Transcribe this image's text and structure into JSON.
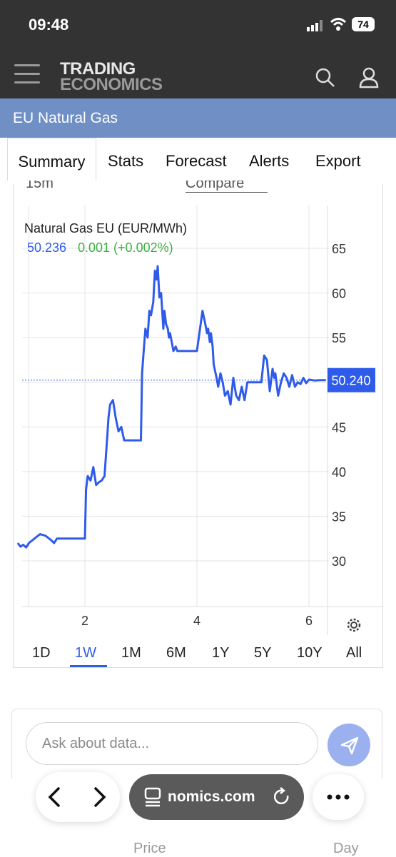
{
  "status_bar": {
    "time": "09:48",
    "battery": "74"
  },
  "header": {
    "logo_line1": "TRADING",
    "logo_line2": "ECONOMICS"
  },
  "page_title": "EU Natural Gas",
  "tabs": [
    "Summary",
    "Stats",
    "Forecast",
    "Alerts",
    "Export"
  ],
  "toolbar_partial": {
    "interval": "15m",
    "compare_placeholder": "Compare"
  },
  "chart_data": {
    "type": "line",
    "title": "Natural Gas EU (EUR/MWh)",
    "last_value": "50.236",
    "change": "0.001 (+0.002%)",
    "current_label": "50.240",
    "x_ticks": [
      "2",
      "4",
      "6"
    ],
    "y_ticks": [
      65,
      60,
      55,
      50,
      45,
      40,
      35,
      30
    ],
    "ylim": [
      25,
      66
    ],
    "xlim": [
      0.8,
      6.3
    ],
    "line_color": "#2f5bea",
    "change_color": "#3cb043",
    "grid": true,
    "series": [
      {
        "x": [
          0.8,
          0.85,
          0.9,
          0.95,
          1.0,
          1.1,
          1.2,
          1.3,
          1.4,
          1.45,
          1.5,
          1.6,
          1.8,
          2.0,
          2.02,
          2.05,
          2.1,
          2.15,
          2.2,
          2.25,
          2.3,
          2.35,
          2.4,
          2.42,
          2.45,
          2.5,
          2.55,
          2.6,
          2.65,
          2.7,
          2.75,
          2.8,
          2.85,
          2.9,
          3.0,
          3.02,
          3.05,
          3.08,
          3.1,
          3.12,
          3.15,
          3.18,
          3.22,
          3.25,
          3.28,
          3.3,
          3.33,
          3.36,
          3.4,
          3.42,
          3.45,
          3.48,
          3.5,
          3.52,
          3.55,
          3.58,
          3.62,
          3.65,
          3.7,
          3.8,
          3.9,
          4.0,
          4.1,
          4.15,
          4.18,
          4.2,
          4.23,
          4.25,
          4.28,
          4.3,
          4.35,
          4.38,
          4.42,
          4.46,
          4.5,
          4.55,
          4.6,
          4.65,
          4.7,
          4.75,
          4.8,
          4.85,
          4.9,
          5.0,
          5.1,
          5.15,
          5.2,
          5.25,
          5.3,
          5.35,
          5.38,
          5.4,
          5.45,
          5.5,
          5.55,
          5.6,
          5.65,
          5.7,
          5.75,
          5.8,
          5.85,
          5.9,
          5.95,
          6.0,
          6.1,
          6.2,
          6.3
        ],
        "y": [
          32.0,
          31.6,
          31.8,
          31.5,
          32.0,
          32.5,
          33.0,
          32.8,
          32.3,
          32.0,
          32.5,
          32.5,
          32.5,
          32.5,
          38.0,
          39.5,
          39.0,
          40.5,
          38.5,
          38.8,
          39.0,
          39.5,
          44.0,
          46.0,
          47.5,
          48.0,
          46.0,
          44.5,
          45.0,
          43.5,
          43.5,
          43.5,
          43.5,
          43.5,
          43.5,
          51.0,
          53.5,
          56.0,
          55.5,
          55.0,
          58.0,
          57.5,
          59.0,
          62.5,
          61.5,
          63.0,
          59.5,
          60.0,
          56.0,
          58.0,
          56.5,
          56.0,
          55.0,
          55.5,
          54.5,
          53.5,
          54.0,
          53.5,
          53.5,
          53.5,
          53.5,
          53.5,
          58.0,
          56.5,
          55.5,
          56.0,
          54.5,
          55.5,
          54.0,
          52.0,
          50.5,
          49.5,
          51.0,
          50.0,
          48.5,
          49.0,
          47.5,
          50.5,
          48.5,
          48.0,
          49.5,
          48.0,
          50.0,
          50.0,
          50.0,
          50.0,
          53.0,
          52.5,
          49.0,
          51.5,
          50.5,
          51.0,
          48.5,
          50.0,
          51.0,
          50.5,
          49.5,
          50.8,
          49.5,
          50.0,
          49.8,
          50.5,
          49.9,
          50.3,
          50.2,
          50.24,
          50.24
        ]
      }
    ]
  },
  "ranges": [
    "1D",
    "1W",
    "1M",
    "6M",
    "1Y",
    "5Y",
    "10Y",
    "All"
  ],
  "active_range": "1W",
  "ask": {
    "placeholder": "Ask about data..."
  },
  "browser": {
    "url_partial": "nomics.com"
  },
  "table_header_partial": {
    "col1": "Price",
    "col2": "Day"
  }
}
